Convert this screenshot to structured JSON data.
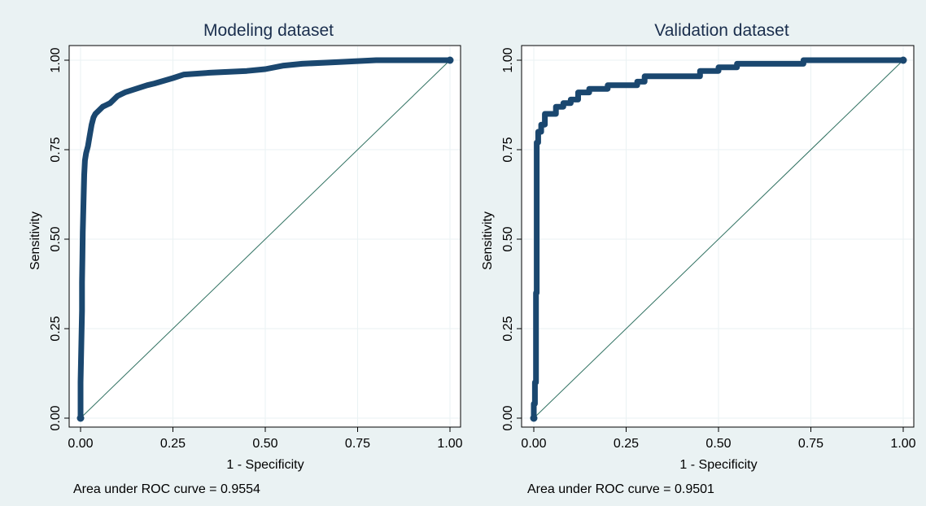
{
  "chart_data": [
    {
      "type": "line",
      "title": "Modeling dataset",
      "xlabel": "1 - Specificity",
      "ylabel": "Sensitivity",
      "xlim": [
        0,
        1
      ],
      "ylim": [
        0,
        1
      ],
      "xticks": [
        "0.00",
        "0.25",
        "0.50",
        "0.75",
        "1.00"
      ],
      "yticks": [
        "0.00",
        "0.25",
        "0.50",
        "0.75",
        "1.00"
      ],
      "note": "Area under ROC curve = 0.9554",
      "series": [
        {
          "x": [
            0,
            0,
            0.002,
            0.004,
            0.004,
            0.005,
            0.006,
            0.008,
            0.01,
            0.012,
            0.015,
            0.02,
            0.025,
            0.03,
            0.035,
            0.04,
            0.05,
            0.06,
            0.07,
            0.08,
            0.09,
            0.1,
            0.12,
            0.15,
            0.18,
            0.2,
            0.25,
            0.28,
            0.35,
            0.45,
            0.5,
            0.55,
            0.6,
            0.7,
            0.8,
            0.9,
            1.0
          ],
          "y": [
            0,
            0.1,
            0.2,
            0.3,
            0.38,
            0.45,
            0.52,
            0.6,
            0.68,
            0.72,
            0.74,
            0.76,
            0.79,
            0.82,
            0.84,
            0.85,
            0.86,
            0.87,
            0.875,
            0.88,
            0.89,
            0.9,
            0.91,
            0.92,
            0.93,
            0.935,
            0.95,
            0.96,
            0.965,
            0.97,
            0.975,
            0.985,
            0.99,
            0.995,
            1.0,
            1.0,
            1.0
          ]
        }
      ]
    },
    {
      "type": "line",
      "title": "Validation dataset",
      "xlabel": "1 - Specificity",
      "ylabel": "Sensitivity",
      "xlim": [
        0,
        1
      ],
      "ylim": [
        0,
        1
      ],
      "xticks": [
        "0.00",
        "0.25",
        "0.50",
        "0.75",
        "1.00"
      ],
      "yticks": [
        "0.00",
        "0.25",
        "0.50",
        "0.75",
        "1.00"
      ],
      "note": "Area under ROC curve = 0.9501",
      "series": [
        {
          "x": [
            0,
            0,
            0.003,
            0.003,
            0.006,
            0.006,
            0.008,
            0.008,
            0.012,
            0.012,
            0.02,
            0.02,
            0.03,
            0.03,
            0.06,
            0.06,
            0.08,
            0.08,
            0.1,
            0.1,
            0.12,
            0.12,
            0.15,
            0.15,
            0.2,
            0.2,
            0.28,
            0.28,
            0.3,
            0.3,
            0.45,
            0.45,
            0.5,
            0.5,
            0.55,
            0.55,
            0.73,
            0.73,
            0.9,
            1.0
          ],
          "y": [
            0,
            0.04,
            0.04,
            0.1,
            0.1,
            0.35,
            0.35,
            0.77,
            0.77,
            0.8,
            0.8,
            0.82,
            0.82,
            0.85,
            0.85,
            0.87,
            0.87,
            0.88,
            0.88,
            0.89,
            0.89,
            0.91,
            0.91,
            0.92,
            0.92,
            0.93,
            0.93,
            0.94,
            0.94,
            0.955,
            0.955,
            0.97,
            0.97,
            0.98,
            0.98,
            0.99,
            0.99,
            1.0,
            1.0,
            1.0
          ]
        }
      ]
    }
  ]
}
